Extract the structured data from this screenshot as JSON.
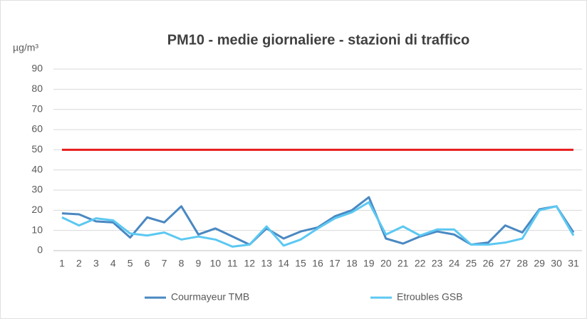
{
  "chart_data": {
    "type": "line",
    "title": "PM10 - medie giornaliere - stazioni di traffico",
    "y_label": "µg/m³",
    "categories": [
      "1",
      "2",
      "3",
      "4",
      "5",
      "6",
      "7",
      "8",
      "9",
      "10",
      "11",
      "12",
      "13",
      "14",
      "15",
      "16",
      "17",
      "18",
      "19",
      "20",
      "21",
      "22",
      "23",
      "24",
      "25",
      "26",
      "27",
      "28",
      "29",
      "30",
      "31"
    ],
    "series": [
      {
        "name": "Courmayeur TMB",
        "color": "#4a88c2",
        "values": [
          18.5,
          18,
          14.5,
          14,
          6.5,
          16.5,
          14,
          22,
          8,
          11,
          7,
          3,
          11,
          6,
          9.5,
          11.5,
          17,
          20,
          26.5,
          6,
          3.5,
          7,
          9.5,
          8,
          3,
          4,
          12.5,
          9,
          20.5,
          22,
          9
        ]
      },
      {
        "name": "Etroubles GSB",
        "color": "#5cc8f2",
        "values": [
          16.5,
          12.5,
          16,
          15,
          8.5,
          7.5,
          9,
          5.5,
          7,
          5.5,
          2,
          3,
          12,
          2.5,
          5.5,
          11,
          16,
          19,
          24,
          8,
          12,
          7.5,
          10.5,
          10.5,
          3,
          3,
          4,
          6,
          20,
          22,
          7.5
        ]
      }
    ],
    "threshold": 50,
    "threshold_color": "#e81c1c",
    "ylim": [
      0,
      90
    ],
    "yticks": [
      0,
      10,
      20,
      30,
      40,
      50,
      60,
      70,
      80,
      90
    ],
    "grid": true
  }
}
